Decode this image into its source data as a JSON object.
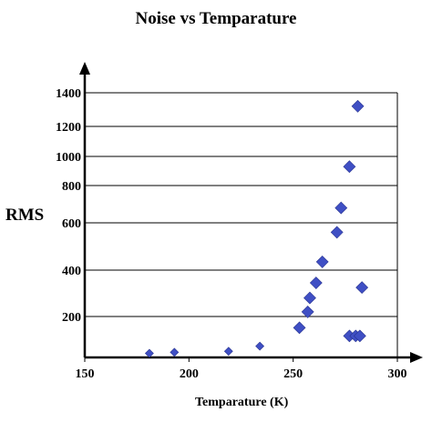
{
  "chart_data": {
    "type": "scatter",
    "title": "Noise vs Temparature",
    "xlabel": "Temparature (K)",
    "ylabel": "RMS",
    "xlim": [
      150,
      300
    ],
    "x_ticks": [
      150,
      200,
      250,
      300
    ],
    "y_ticks": [
      200,
      400,
      600,
      800,
      1000,
      1200,
      1400
    ],
    "grid": "horizontal",
    "marker_color": "#3f4fc4",
    "series": [
      {
        "points": [
          {
            "x": 181,
            "y": 20
          },
          {
            "x": 193,
            "y": 25
          },
          {
            "x": 219,
            "y": 30
          },
          {
            "x": 234,
            "y": 55
          },
          {
            "x": 253,
            "y": 145
          },
          {
            "x": 257,
            "y": 220
          },
          {
            "x": 258,
            "y": 280
          },
          {
            "x": 261,
            "y": 345
          },
          {
            "x": 264,
            "y": 435
          },
          {
            "x": 271,
            "y": 560
          },
          {
            "x": 273,
            "y": 680
          },
          {
            "x": 277,
            "y": 930
          },
          {
            "x": 281,
            "y": 1320
          },
          {
            "x": 277,
            "y": 105
          },
          {
            "x": 280,
            "y": 105
          },
          {
            "x": 282,
            "y": 105
          },
          {
            "x": 283,
            "y": 325
          }
        ]
      }
    ]
  }
}
